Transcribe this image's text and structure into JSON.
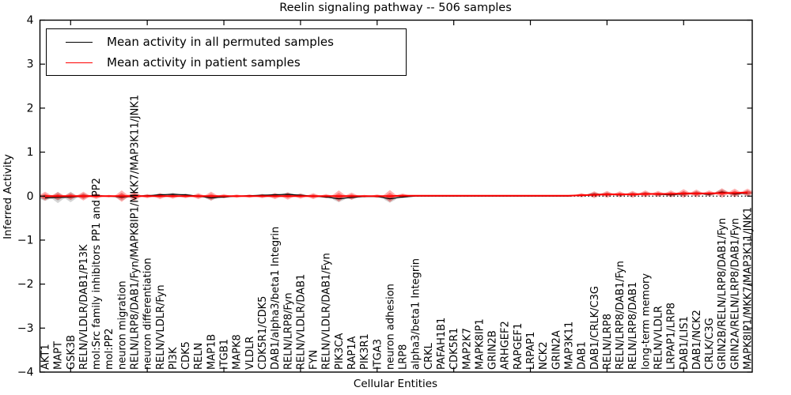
{
  "title": "Reelin signaling pathway -- 506 samples",
  "legend": {
    "items": [
      {
        "label": "Mean activity in all permuted samples",
        "color": "#000000"
      },
      {
        "label": "Mean activity in patient samples",
        "color": "#ff0000"
      }
    ]
  },
  "chart_data": {
    "type": "area",
    "title": "Reelin signaling pathway -- 506 samples",
    "xlabel": "Cellular Entities",
    "ylabel": "Inferred Activity",
    "ylim": [
      -4,
      4
    ],
    "yticks": [
      -4,
      -3,
      -2,
      -1,
      0,
      1,
      2,
      3,
      4
    ],
    "legend_position": "upper left",
    "grid": false,
    "zero_line": {
      "style": "dotted",
      "color": "#000000",
      "y": 0
    },
    "categories": [
      "AKT1",
      "MAPT",
      "GSK3B",
      "RELN/VLDLR/DAB1/P13K",
      "mol:Src family inhibitors PP1 and PP2",
      "mol:PP2",
      "neuron migration",
      "RELN/LRP8/DAB1/Fyn/MAPK8IP1/MKK7/MAP3K11/JNK1",
      "neuron differentiation",
      "RELN/VLDLR/Fyn",
      "PI3K",
      "CDK5",
      "RELN",
      "MAP1B",
      "ITGB1",
      "MAPK8",
      "VLDLR",
      "CDK5R1/CDK5",
      "DAB1/alpha3/beta1 Integrin",
      "RELN/LRP8/Fyn",
      "RELN/VLDLR/DAB1",
      "FYN",
      "RELN/VLDLR/DAB1/Fyn",
      "PIK3CA",
      "RAP1A",
      "PIK3R1",
      "ITGA3",
      "neuron adhesion",
      "LRP8",
      "alpha3/beta1 Integrin",
      "CRKL",
      "PAFAH1B1",
      "CDK5R1",
      "MAP2K7",
      "MAPK8IP1",
      "GRIN2B",
      "ARHGEF2",
      "RAPGEF1",
      "LRPAP1",
      "NCK2",
      "GRIN2A",
      "MAP3K11",
      "DAB1",
      "DAB1/CRLK/C3G",
      "RELN/LRP8",
      "RELN/LRP8/DAB1/Fyn",
      "RELN/LRP8/DAB1",
      "long-term memory",
      "RELN/VLDLR",
      "LRPAP1/LRP8",
      "DAB1/LIS1",
      "DAB1/NCK2",
      "CRLK/C3G",
      "GRIN2B/RELN/LRP8/DAB1/Fyn",
      "GRIN2A/RELN/LRP8/DAB1/Fyn",
      "MAPK8IP1/MKK7/MAP3K11/JNK1"
    ],
    "series": [
      {
        "name": "Mean activity in all permuted samples",
        "color": "#000000",
        "values": [
          -0.04,
          -0.03,
          -0.02,
          0.0,
          0.01,
          0.0,
          -0.02,
          0.0,
          0.01,
          0.03,
          0.04,
          0.03,
          0.0,
          -0.04,
          -0.02,
          0.0,
          0.01,
          0.02,
          0.03,
          0.04,
          0.02,
          0.0,
          -0.02,
          -0.06,
          -0.03,
          -0.01,
          -0.01,
          -0.06,
          -0.02,
          0.0,
          0.0,
          0.0,
          0.0,
          0.0,
          0.0,
          0.0,
          0.0,
          0.0,
          0.0,
          0.0,
          0.0,
          0.0,
          0.02,
          0.04,
          0.04,
          0.03,
          0.04,
          0.05,
          0.04,
          0.03,
          0.05,
          0.06,
          0.04,
          0.09,
          0.05,
          0.07
        ]
      },
      {
        "name": "Mean activity in patient samples",
        "color": "#ff0000",
        "values": [
          0.0,
          0.0,
          0.0,
          0.0,
          0.0,
          0.0,
          0.0,
          0.0,
          0.0,
          0.0,
          0.0,
          0.0,
          0.0,
          0.0,
          0.0,
          0.0,
          0.0,
          0.0,
          0.0,
          0.0,
          0.0,
          0.0,
          0.0,
          0.0,
          0.0,
          0.0,
          0.0,
          0.0,
          0.01,
          0.01,
          0.01,
          0.01,
          0.01,
          0.01,
          0.01,
          0.01,
          0.01,
          0.01,
          0.01,
          0.01,
          0.01,
          0.01,
          0.02,
          0.03,
          0.04,
          0.04,
          0.04,
          0.05,
          0.05,
          0.05,
          0.06,
          0.06,
          0.06,
          0.07,
          0.07,
          0.08
        ]
      }
    ],
    "bands": [
      {
        "name": "patient activity spread",
        "color": "#ff0000",
        "opacity": 0.3,
        "center_series": 1,
        "halfwidths": [
          0.1,
          0.09,
          0.08,
          0.1,
          0.07,
          0.03,
          0.13,
          0.11,
          0.05,
          0.07,
          0.06,
          0.05,
          0.07,
          0.1,
          0.05,
          0.04,
          0.04,
          0.05,
          0.07,
          0.08,
          0.06,
          0.07,
          0.05,
          0.13,
          0.08,
          0.03,
          0.04,
          0.14,
          0.05,
          0.01,
          0.01,
          0.01,
          0.01,
          0.01,
          0.01,
          0.01,
          0.01,
          0.01,
          0.01,
          0.01,
          0.01,
          0.01,
          0.05,
          0.08,
          0.08,
          0.07,
          0.08,
          0.08,
          0.07,
          0.08,
          0.1,
          0.09,
          0.07,
          0.11,
          0.1,
          0.09
        ]
      },
      {
        "name": "permuted activity spread",
        "color": "#888888",
        "opacity": 0.35,
        "center_series": 0,
        "halfwidths": [
          0.07,
          0.13,
          0.12,
          0.07,
          0.04,
          0.02,
          0.08,
          0.07,
          0.03,
          0.04,
          0.04,
          0.03,
          0.04,
          0.06,
          0.03,
          0.02,
          0.02,
          0.03,
          0.04,
          0.05,
          0.04,
          0.04,
          0.03,
          0.08,
          0.05,
          0.02,
          0.02,
          0.09,
          0.03,
          0.01,
          0.01,
          0.01,
          0.01,
          0.01,
          0.01,
          0.01,
          0.01,
          0.01,
          0.01,
          0.01,
          0.01,
          0.01,
          0.03,
          0.05,
          0.05,
          0.04,
          0.05,
          0.05,
          0.04,
          0.05,
          0.06,
          0.06,
          0.04,
          0.07,
          0.06,
          0.06
        ]
      }
    ],
    "x_major_tick_indices": [
      2,
      8,
      14,
      20,
      26,
      32,
      38,
      44,
      50
    ]
  }
}
